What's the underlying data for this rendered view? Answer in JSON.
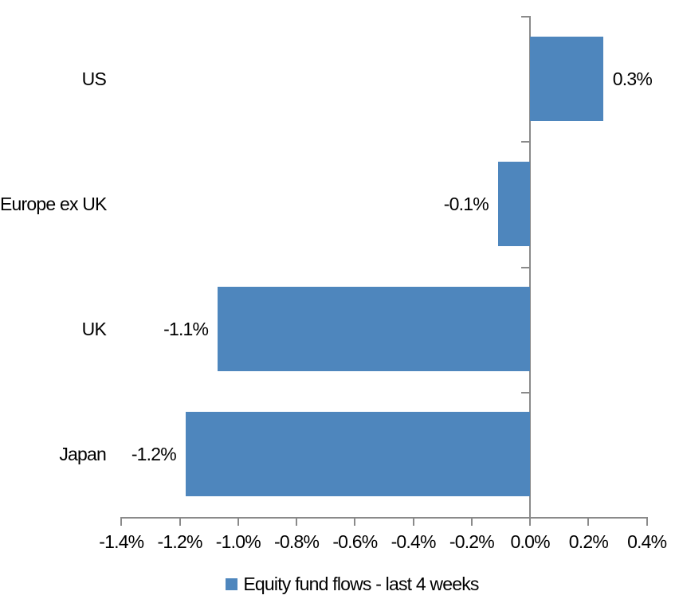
{
  "chart_data": {
    "type": "bar",
    "orientation": "horizontal",
    "title": "",
    "categories": [
      "US",
      "Europe ex UK",
      "UK",
      "Japan"
    ],
    "series": [
      {
        "name": "Equity fund flows - last 4 weeks",
        "values": [
          0.25,
          -0.11,
          -1.07,
          -1.18
        ],
        "value_labels": [
          "0.3%",
          "-0.1%",
          "-1.1%",
          "-1.2%"
        ],
        "unit": "percent"
      }
    ],
    "xlim": [
      -1.4,
      0.4
    ],
    "x_tick_values": [
      -1.4,
      -1.2,
      -1.0,
      -0.8,
      -0.6,
      -0.4,
      -0.2,
      0.0,
      0.2,
      0.4
    ],
    "x_tick_labels": [
      "-1.4%",
      "-1.2%",
      "-1.0%",
      "-0.8%",
      "-0.6%",
      "-0.4%",
      "-0.2%",
      "0.0%",
      "0.2%",
      "0.4%"
    ],
    "grid": false,
    "legend_position": "bottom",
    "colors": {
      "bar": "#4E86BD",
      "axis": "#8A8A8A",
      "text": "#000000",
      "background": "#FFFFFF"
    }
  }
}
